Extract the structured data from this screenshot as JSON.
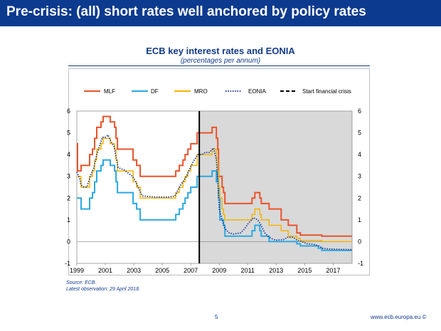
{
  "header": {
    "title": "Pre-crisis: (all) short rates well anchored by policy rates"
  },
  "footer": {
    "source": "Source: ECB.",
    "latest": "Latest observation: 29 April 2018.",
    "page": "5",
    "site": "www.ecb.europa.eu ©"
  },
  "colors": {
    "mlf": "#e8542a",
    "df": "#2ba9e0",
    "mro": "#f5b400",
    "eonia": "#1f3a93",
    "crisis": "#000000",
    "shade": "#d9d9d9",
    "brand": "#0b3a8f"
  },
  "chart_data": {
    "type": "line",
    "title": "ECB key interest rates and EONIA",
    "subtitle": "(percentages per annum)",
    "xlabel": "",
    "ylabel": "",
    "xlim": [
      1999.0,
      2018.33
    ],
    "ylim": [
      -1,
      6
    ],
    "yticks": [
      "-1",
      "0",
      "1",
      "2",
      "3",
      "4",
      "5",
      "6"
    ],
    "xticks": [
      "1999",
      "2001",
      "2003",
      "2005",
      "2007",
      "2009",
      "2011",
      "2013",
      "2015",
      "2017"
    ],
    "crisis_start": 2007.6,
    "legend": [
      {
        "key": "mlf",
        "label": "MLF"
      },
      {
        "key": "df",
        "label": "DF"
      },
      {
        "key": "mro",
        "label": "MRO"
      },
      {
        "key": "eonia",
        "label": "EONIA"
      },
      {
        "key": "crisis",
        "label": "Start financial crisis"
      }
    ],
    "series": [
      {
        "key": "mlf",
        "name": "MLF",
        "step": true,
        "points": [
          [
            1999.0,
            4.5
          ],
          [
            1999.05,
            3.25
          ],
          [
            1999.3,
            3.5
          ],
          [
            1999.9,
            4.0
          ],
          [
            2000.1,
            4.25
          ],
          [
            2000.25,
            4.75
          ],
          [
            2000.4,
            5.25
          ],
          [
            2000.7,
            5.5
          ],
          [
            2000.85,
            5.75
          ],
          [
            2001.35,
            5.5
          ],
          [
            2001.65,
            5.25
          ],
          [
            2001.75,
            4.75
          ],
          [
            2001.85,
            4.25
          ],
          [
            2002.95,
            3.75
          ],
          [
            2003.2,
            3.5
          ],
          [
            2003.45,
            3.0
          ],
          [
            2005.95,
            3.25
          ],
          [
            2006.2,
            3.5
          ],
          [
            2006.45,
            3.75
          ],
          [
            2006.6,
            4.0
          ],
          [
            2006.8,
            4.25
          ],
          [
            2007.0,
            4.5
          ],
          [
            2007.45,
            5.0
          ],
          [
            2008.5,
            5.25
          ],
          [
            2008.8,
            4.75
          ],
          [
            2008.9,
            4.25
          ],
          [
            2008.95,
            3.0
          ],
          [
            2009.05,
            3.0
          ],
          [
            2009.2,
            2.5
          ],
          [
            2009.3,
            2.25
          ],
          [
            2009.4,
            1.75
          ],
          [
            2011.3,
            2.0
          ],
          [
            2011.5,
            2.25
          ],
          [
            2011.85,
            2.0
          ],
          [
            2011.95,
            1.75
          ],
          [
            2012.5,
            1.5
          ],
          [
            2013.35,
            1.0
          ],
          [
            2013.85,
            0.75
          ],
          [
            2014.45,
            0.4
          ],
          [
            2014.7,
            0.3
          ],
          [
            2016.2,
            0.25
          ],
          [
            2018.33,
            0.25
          ]
        ]
      },
      {
        "key": "df",
        "name": "DF",
        "step": true,
        "points": [
          [
            1999.0,
            2.0
          ],
          [
            1999.3,
            1.5
          ],
          [
            1999.9,
            2.0
          ],
          [
            2000.1,
            2.25
          ],
          [
            2000.25,
            2.75
          ],
          [
            2000.4,
            3.25
          ],
          [
            2000.7,
            3.5
          ],
          [
            2000.85,
            3.75
          ],
          [
            2001.35,
            3.5
          ],
          [
            2001.65,
            3.25
          ],
          [
            2001.75,
            2.75
          ],
          [
            2001.85,
            2.25
          ],
          [
            2002.95,
            1.75
          ],
          [
            2003.2,
            1.5
          ],
          [
            2003.45,
            1.0
          ],
          [
            2005.95,
            1.25
          ],
          [
            2006.2,
            1.5
          ],
          [
            2006.45,
            1.75
          ],
          [
            2006.6,
            2.0
          ],
          [
            2006.8,
            2.25
          ],
          [
            2007.0,
            2.5
          ],
          [
            2007.45,
            3.0
          ],
          [
            2008.5,
            3.25
          ],
          [
            2008.8,
            2.75
          ],
          [
            2008.9,
            3.25
          ],
          [
            2008.95,
            2.0
          ],
          [
            2009.05,
            1.0
          ],
          [
            2009.3,
            0.75
          ],
          [
            2009.4,
            0.25
          ],
          [
            2011.3,
            0.5
          ],
          [
            2011.5,
            0.75
          ],
          [
            2011.85,
            0.5
          ],
          [
            2011.95,
            0.25
          ],
          [
            2012.5,
            0.0
          ],
          [
            2014.45,
            -0.1
          ],
          [
            2014.7,
            -0.2
          ],
          [
            2015.95,
            -0.3
          ],
          [
            2016.2,
            -0.4
          ],
          [
            2018.33,
            -0.4
          ]
        ]
      },
      {
        "key": "mro",
        "name": "MRO",
        "step": true,
        "points": [
          [
            1999.0,
            3.0
          ],
          [
            1999.3,
            2.5
          ],
          [
            1999.9,
            3.0
          ],
          [
            2000.1,
            3.25
          ],
          [
            2000.25,
            3.75
          ],
          [
            2000.4,
            4.25
          ],
          [
            2000.7,
            4.5
          ],
          [
            2000.85,
            4.75
          ],
          [
            2001.35,
            4.5
          ],
          [
            2001.65,
            4.25
          ],
          [
            2001.75,
            3.75
          ],
          [
            2001.85,
            3.25
          ],
          [
            2002.95,
            2.75
          ],
          [
            2003.2,
            2.5
          ],
          [
            2003.45,
            2.0
          ],
          [
            2005.95,
            2.25
          ],
          [
            2006.2,
            2.5
          ],
          [
            2006.45,
            2.75
          ],
          [
            2006.6,
            3.0
          ],
          [
            2006.8,
            3.25
          ],
          [
            2007.0,
            3.5
          ],
          [
            2007.45,
            4.0
          ],
          [
            2008.5,
            4.25
          ],
          [
            2008.8,
            3.75
          ],
          [
            2008.9,
            3.25
          ],
          [
            2008.95,
            2.5
          ],
          [
            2009.05,
            2.0
          ],
          [
            2009.2,
            1.5
          ],
          [
            2009.3,
            1.25
          ],
          [
            2009.4,
            1.0
          ],
          [
            2011.3,
            1.25
          ],
          [
            2011.5,
            1.5
          ],
          [
            2011.85,
            1.25
          ],
          [
            2011.95,
            1.0
          ],
          [
            2012.5,
            0.75
          ],
          [
            2013.35,
            0.5
          ],
          [
            2013.85,
            0.25
          ],
          [
            2014.45,
            0.15
          ],
          [
            2014.7,
            0.05
          ],
          [
            2016.2,
            0.0
          ],
          [
            2018.33,
            0.0
          ]
        ]
      },
      {
        "key": "eonia",
        "name": "EONIA",
        "step": false,
        "points": [
          [
            1999.0,
            3.2
          ],
          [
            1999.2,
            2.9
          ],
          [
            1999.3,
            2.6
          ],
          [
            1999.5,
            2.5
          ],
          [
            1999.7,
            2.5
          ],
          [
            1999.9,
            2.9
          ],
          [
            2000.0,
            3.1
          ],
          [
            2000.2,
            3.4
          ],
          [
            2000.4,
            4.0
          ],
          [
            2000.6,
            4.4
          ],
          [
            2000.8,
            4.8
          ],
          [
            2001.0,
            4.8
          ],
          [
            2001.2,
            4.9
          ],
          [
            2001.4,
            4.6
          ],
          [
            2001.6,
            4.4
          ],
          [
            2001.75,
            3.9
          ],
          [
            2001.9,
            3.4
          ],
          [
            2002.3,
            3.3
          ],
          [
            2002.9,
            3.0
          ],
          [
            2003.1,
            2.8
          ],
          [
            2003.3,
            2.5
          ],
          [
            2003.6,
            2.1
          ],
          [
            2004.5,
            2.05
          ],
          [
            2005.5,
            2.05
          ],
          [
            2005.9,
            2.1
          ],
          [
            2006.2,
            2.5
          ],
          [
            2006.5,
            2.8
          ],
          [
            2006.7,
            3.0
          ],
          [
            2006.9,
            3.3
          ],
          [
            2007.2,
            3.7
          ],
          [
            2007.5,
            4.0
          ],
          [
            2007.8,
            4.0
          ],
          [
            2008.0,
            4.1
          ],
          [
            2008.3,
            4.1
          ],
          [
            2008.6,
            4.3
          ],
          [
            2008.8,
            3.8
          ],
          [
            2008.9,
            2.8
          ],
          [
            2009.0,
            1.5
          ],
          [
            2009.2,
            1.0
          ],
          [
            2009.4,
            0.6
          ],
          [
            2009.7,
            0.4
          ],
          [
            2010.0,
            0.35
          ],
          [
            2010.5,
            0.4
          ],
          [
            2010.8,
            0.6
          ],
          [
            2011.0,
            0.8
          ],
          [
            2011.4,
            1.1
          ],
          [
            2011.7,
            1.0
          ],
          [
            2011.9,
            0.8
          ],
          [
            2012.2,
            0.4
          ],
          [
            2012.5,
            0.2
          ],
          [
            2012.8,
            0.1
          ],
          [
            2013.0,
            0.07
          ],
          [
            2013.5,
            0.09
          ],
          [
            2013.8,
            0.2
          ],
          [
            2014.2,
            0.2
          ],
          [
            2014.5,
            0.05
          ],
          [
            2014.8,
            0.0
          ],
          [
            2015.2,
            -0.1
          ],
          [
            2015.6,
            -0.12
          ],
          [
            2016.0,
            -0.2
          ],
          [
            2016.3,
            -0.32
          ],
          [
            2017.0,
            -0.35
          ],
          [
            2018.33,
            -0.37
          ]
        ]
      }
    ]
  }
}
